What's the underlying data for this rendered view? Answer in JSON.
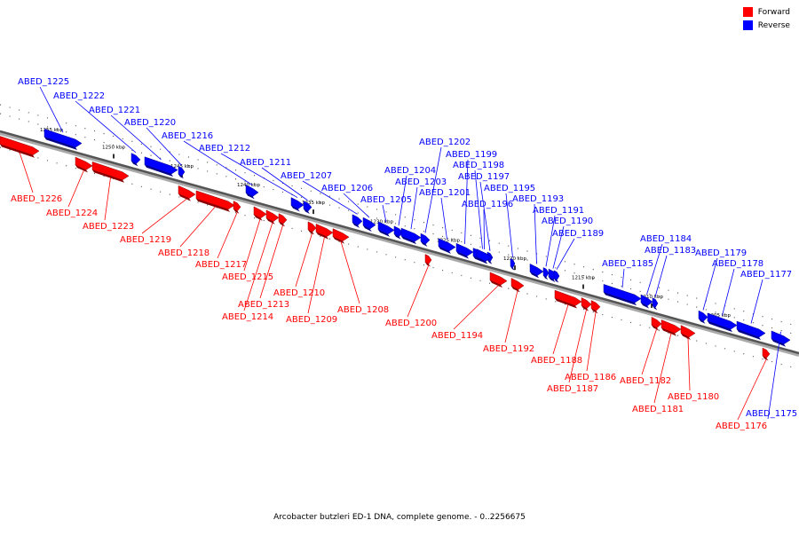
{
  "legend": {
    "forward_label": "Forward",
    "reverse_label": "Reverse",
    "forward_color": "#ff0000",
    "reverse_color": "#0000ff"
  },
  "caption": "Arcobacter butzleri ED-1 DNA, complete genome. - 0..2256675",
  "ticks": [
    "1255 kbp",
    "1250 kbp",
    "1245 kbp",
    "1240 kbp",
    "1235 kbp",
    "1230 kbp",
    "1225 kbp",
    "1220 kbp",
    "1215 kbp",
    "1210 kbp",
    "1205 kbp"
  ],
  "genes": [
    {
      "name": "ABED_1226",
      "strand": "forward"
    },
    {
      "name": "ABED_1225",
      "strand": "reverse"
    },
    {
      "name": "ABED_1224",
      "strand": "forward"
    },
    {
      "name": "ABED_1223",
      "strand": "forward"
    },
    {
      "name": "ABED_1222",
      "strand": "reverse"
    },
    {
      "name": "ABED_1221",
      "strand": "reverse"
    },
    {
      "name": "ABED_1220",
      "strand": "reverse"
    },
    {
      "name": "ABED_1219",
      "strand": "forward"
    },
    {
      "name": "ABED_1218",
      "strand": "forward"
    },
    {
      "name": "ABED_1217",
      "strand": "forward"
    },
    {
      "name": "ABED_1216",
      "strand": "reverse"
    },
    {
      "name": "ABED_1215",
      "strand": "forward"
    },
    {
      "name": "ABED_1214",
      "strand": "forward"
    },
    {
      "name": "ABED_1213",
      "strand": "forward"
    },
    {
      "name": "ABED_1212",
      "strand": "reverse"
    },
    {
      "name": "ABED_1211",
      "strand": "reverse"
    },
    {
      "name": "ABED_1210",
      "strand": "forward"
    },
    {
      "name": "ABED_1209",
      "strand": "forward"
    },
    {
      "name": "ABED_1208",
      "strand": "forward"
    },
    {
      "name": "ABED_1207",
      "strand": "reverse"
    },
    {
      "name": "ABED_1206",
      "strand": "reverse"
    },
    {
      "name": "ABED_1205",
      "strand": "reverse"
    },
    {
      "name": "ABED_1204",
      "strand": "reverse"
    },
    {
      "name": "ABED_1203",
      "strand": "reverse"
    },
    {
      "name": "ABED_1202",
      "strand": "reverse"
    },
    {
      "name": "ABED_1201",
      "strand": "reverse"
    },
    {
      "name": "ABED_1200",
      "strand": "forward"
    },
    {
      "name": "ABED_1199",
      "strand": "reverse"
    },
    {
      "name": "ABED_1198",
      "strand": "reverse"
    },
    {
      "name": "ABED_1197",
      "strand": "reverse"
    },
    {
      "name": "ABED_1196",
      "strand": "reverse"
    },
    {
      "name": "ABED_1195",
      "strand": "reverse"
    },
    {
      "name": "ABED_1194",
      "strand": "forward"
    },
    {
      "name": "ABED_1193",
      "strand": "reverse"
    },
    {
      "name": "ABED_1192",
      "strand": "forward"
    },
    {
      "name": "ABED_1191",
      "strand": "reverse"
    },
    {
      "name": "ABED_1190",
      "strand": "reverse"
    },
    {
      "name": "ABED_1189",
      "strand": "reverse"
    },
    {
      "name": "ABED_1188",
      "strand": "forward"
    },
    {
      "name": "ABED_1187",
      "strand": "forward"
    },
    {
      "name": "ABED_1186",
      "strand": "forward"
    },
    {
      "name": "ABED_1185",
      "strand": "reverse"
    },
    {
      "name": "ABED_1184",
      "strand": "reverse"
    },
    {
      "name": "ABED_1183",
      "strand": "reverse"
    },
    {
      "name": "ABED_1182",
      "strand": "forward"
    },
    {
      "name": "ABED_1181",
      "strand": "forward"
    },
    {
      "name": "ABED_1180",
      "strand": "forward"
    },
    {
      "name": "ABED_1179",
      "strand": "reverse"
    },
    {
      "name": "ABED_1178",
      "strand": "reverse"
    },
    {
      "name": "ABED_1177",
      "strand": "reverse"
    },
    {
      "name": "ABED_1176",
      "strand": "forward"
    },
    {
      "name": "ABED_1175",
      "strand": "reverse"
    }
  ]
}
